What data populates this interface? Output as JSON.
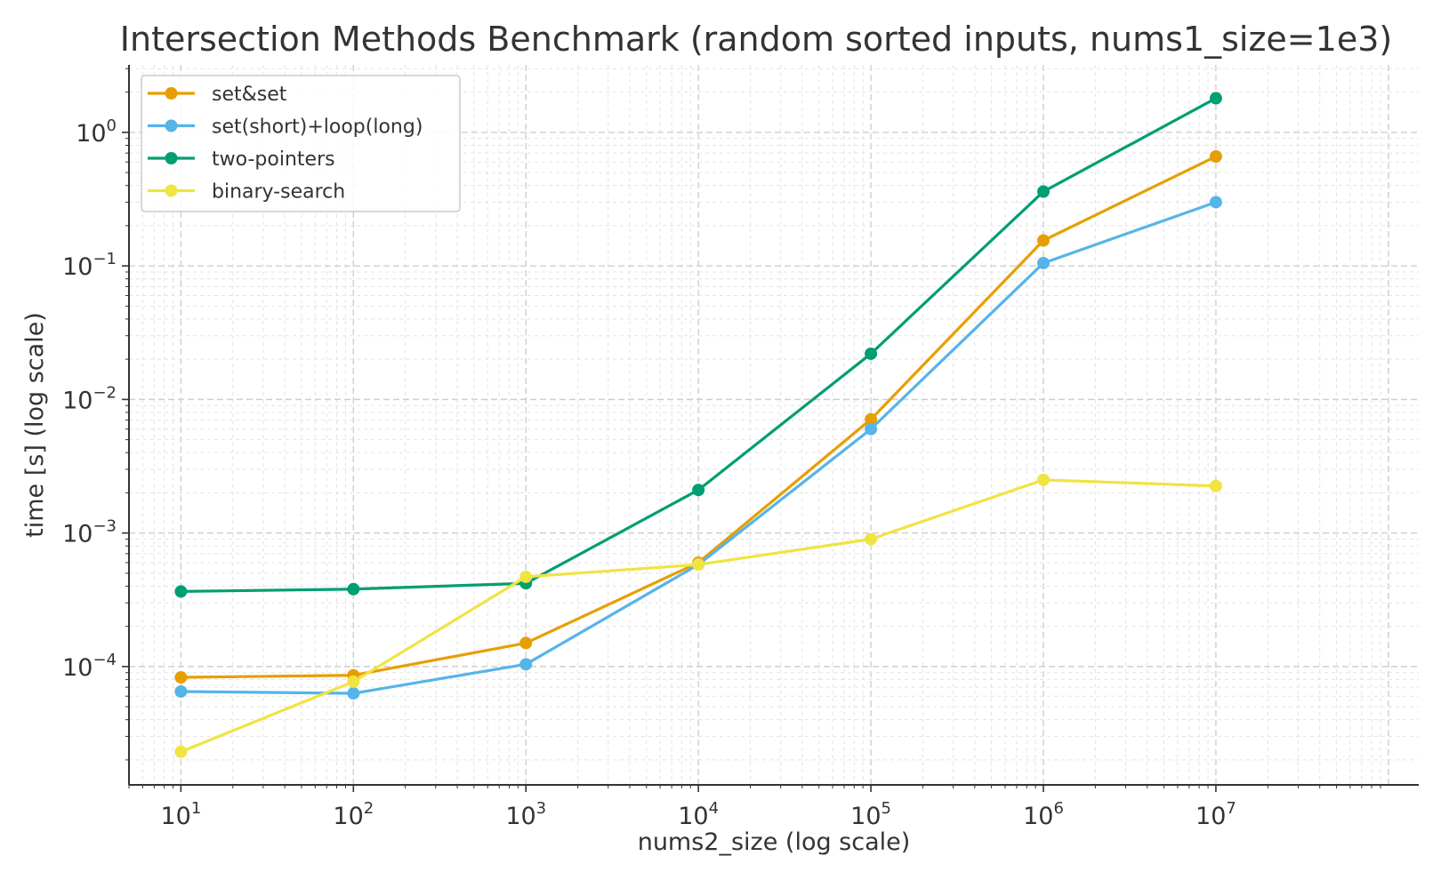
{
  "chart_data": {
    "type": "line",
    "title": "Intersection Methods Benchmark (random sorted inputs, nums1_size=1e3)",
    "xlabel": "nums2_size (log scale)",
    "ylabel": "time [s] (log scale)",
    "x_scale": "log",
    "y_scale": "log",
    "xlim": [
      5,
      150000000
    ],
    "ylim": [
      1.3e-05,
      3.2
    ],
    "x": [
      10,
      100,
      1000,
      10000,
      100000,
      1000000,
      10000000
    ],
    "x_ticks": [
      {
        "value": 10,
        "base": "10",
        "exp": "1"
      },
      {
        "value": 100,
        "base": "10",
        "exp": "2"
      },
      {
        "value": 1000,
        "base": "10",
        "exp": "3"
      },
      {
        "value": 10000,
        "base": "10",
        "exp": "4"
      },
      {
        "value": 100000,
        "base": "10",
        "exp": "5"
      },
      {
        "value": 1000000,
        "base": "10",
        "exp": "6"
      },
      {
        "value": 10000000,
        "base": "10",
        "exp": "7"
      }
    ],
    "y_ticks": [
      {
        "value": 0.0001,
        "base": "10",
        "exp": "−4"
      },
      {
        "value": 0.001,
        "base": "10",
        "exp": "−3"
      },
      {
        "value": 0.01,
        "base": "10",
        "exp": "−2"
      },
      {
        "value": 0.1,
        "base": "10",
        "exp": "−1"
      },
      {
        "value": 1,
        "base": "10",
        "exp": "0"
      }
    ],
    "grid": true,
    "legend_position": "top-left",
    "series": [
      {
        "name": "set&set",
        "color": "#E69F00",
        "values": [
          8.3e-05,
          8.6e-05,
          0.00015,
          0.0006,
          0.0071,
          0.155,
          0.66
        ]
      },
      {
        "name": "set(short)+loop(long)",
        "color": "#56B4E9",
        "values": [
          6.5e-05,
          6.3e-05,
          0.000104,
          0.00058,
          0.006,
          0.105,
          0.3
        ]
      },
      {
        "name": "two-pointers",
        "color": "#009E73",
        "values": [
          0.000365,
          0.00038,
          0.00042,
          0.0021,
          0.022,
          0.36,
          1.8
        ]
      },
      {
        "name": "binary-search",
        "color": "#F0E442",
        "values": [
          2.3e-05,
          7.7e-05,
          0.00047,
          0.00058,
          0.0009,
          0.0025,
          0.00225
        ]
      }
    ]
  }
}
